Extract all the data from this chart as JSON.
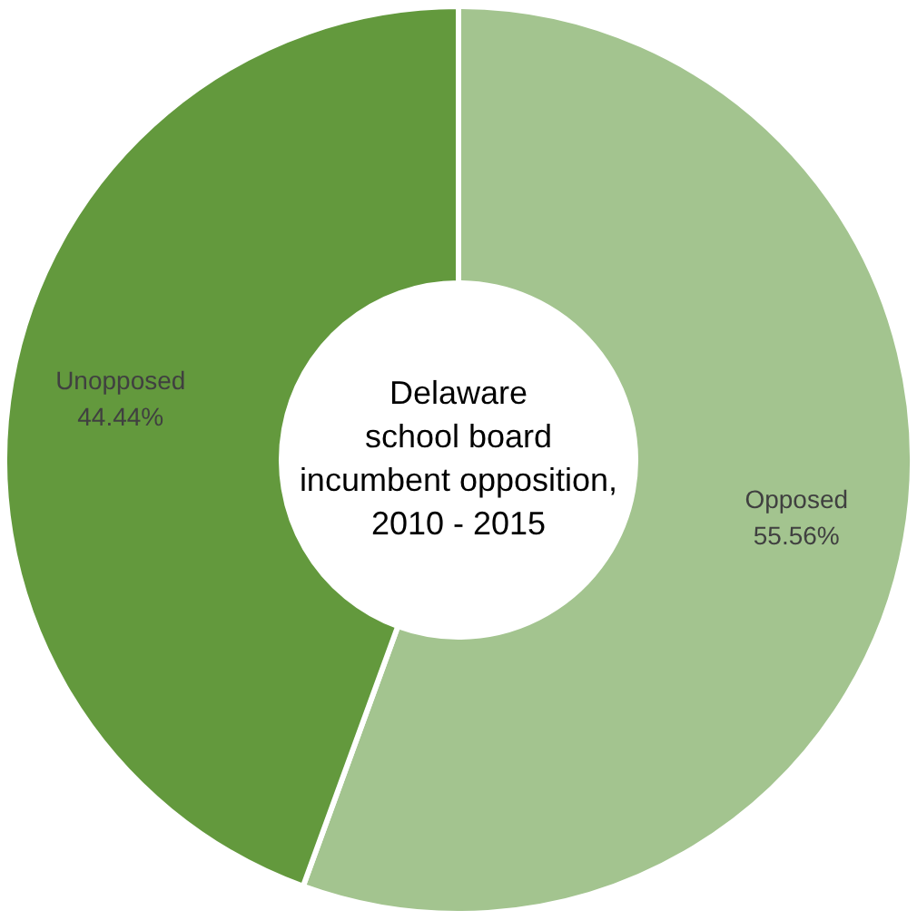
{
  "chart_data": {
    "type": "donut",
    "title": "Delaware\nschool board\nincumbent opposition,\n2010 - 2015",
    "categories": [
      "Opposed",
      "Unopposed"
    ],
    "values": [
      55.56,
      44.44
    ],
    "colors": [
      "#a3c48f",
      "#63993d"
    ],
    "value_labels": [
      "55.56%",
      "44.44%"
    ],
    "legend": false
  }
}
